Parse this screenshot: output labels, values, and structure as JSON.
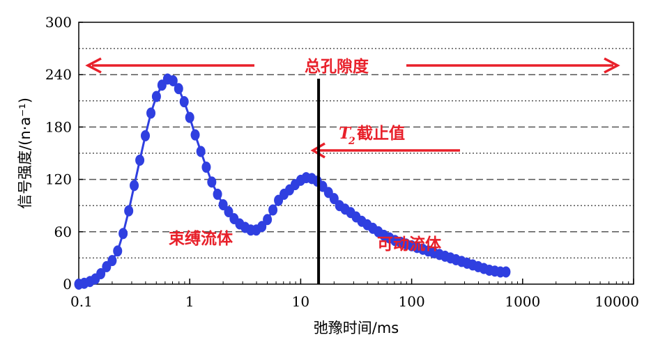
{
  "chart_data": {
    "type": "line",
    "xlabel": "弛豫时间/ms",
    "ylabel": "信号强度/(n·a⁻¹)",
    "x_scale": "log",
    "xlim": [
      0.1,
      10000
    ],
    "ylim": [
      0,
      300
    ],
    "x_ticks": [
      "0.1",
      "1",
      "10",
      "100",
      "1000",
      "10000"
    ],
    "y_ticks": [
      "0",
      "60",
      "120",
      "180",
      "240",
      "300"
    ],
    "grid": {
      "dashed_y": [
        60,
        120,
        180,
        240
      ],
      "dotted_y": [
        30,
        90,
        150,
        210,
        270
      ]
    },
    "series": [
      {
        "color": "#2f3fe0",
        "marker": "circle",
        "points": [
          [
            0.1,
            0
          ],
          [
            0.112,
            1
          ],
          [
            0.126,
            3
          ],
          [
            0.141,
            6
          ],
          [
            0.158,
            12
          ],
          [
            0.178,
            20
          ],
          [
            0.2,
            27
          ],
          [
            0.224,
            38
          ],
          [
            0.251,
            58
          ],
          [
            0.282,
            84
          ],
          [
            0.316,
            113
          ],
          [
            0.355,
            142
          ],
          [
            0.398,
            170
          ],
          [
            0.447,
            196
          ],
          [
            0.501,
            215
          ],
          [
            0.562,
            228
          ],
          [
            0.631,
            235
          ],
          [
            0.708,
            233
          ],
          [
            0.794,
            224
          ],
          [
            0.891,
            209
          ],
          [
            1.0,
            191
          ],
          [
            1.12,
            171
          ],
          [
            1.26,
            152
          ],
          [
            1.41,
            134
          ],
          [
            1.58,
            117
          ],
          [
            1.78,
            103
          ],
          [
            2.0,
            91
          ],
          [
            2.24,
            83
          ],
          [
            2.51,
            75
          ],
          [
            2.82,
            69
          ],
          [
            3.16,
            65
          ],
          [
            3.55,
            62
          ],
          [
            3.98,
            62
          ],
          [
            4.47,
            66
          ],
          [
            5.01,
            74
          ],
          [
            5.62,
            85
          ],
          [
            6.31,
            96
          ],
          [
            7.08,
            103
          ],
          [
            7.94,
            108
          ],
          [
            8.91,
            114
          ],
          [
            10.0,
            119
          ],
          [
            11.2,
            122
          ],
          [
            12.6,
            121
          ],
          [
            14.1,
            118
          ],
          [
            15.8,
            112
          ],
          [
            17.8,
            105
          ],
          [
            20.0,
            98
          ],
          [
            22.4,
            90
          ],
          [
            25.1,
            86
          ],
          [
            28.2,
            82
          ],
          [
            31.6,
            77
          ],
          [
            35.5,
            72
          ],
          [
            39.8,
            68
          ],
          [
            44.7,
            64
          ],
          [
            50.1,
            60
          ],
          [
            56.2,
            56
          ],
          [
            63.1,
            53
          ],
          [
            70.8,
            50
          ],
          [
            79.4,
            48
          ],
          [
            89.1,
            46
          ],
          [
            100,
            44
          ],
          [
            112,
            42
          ],
          [
            126,
            40
          ],
          [
            141,
            38
          ],
          [
            158,
            36
          ],
          [
            178,
            34
          ],
          [
            200,
            32
          ],
          [
            224,
            30
          ],
          [
            251,
            28
          ],
          [
            282,
            26
          ],
          [
            316,
            24
          ],
          [
            355,
            22
          ],
          [
            398,
            20
          ],
          [
            447,
            18
          ],
          [
            501,
            16
          ],
          [
            562,
            15
          ],
          [
            631,
            14
          ],
          [
            708,
            14
          ]
        ]
      }
    ],
    "t2_cutoff_x": 14.5,
    "annotations": {
      "total_porosity": "总孔隙度",
      "t2_cutoff": "截止值",
      "t2_symbol": "T",
      "t2_subscript": "2",
      "bound_fluid": "束缚流体",
      "movable_fluid": "可动流体"
    },
    "colors": {
      "curve": "#2f3fe0",
      "annotation": "#e8202a",
      "grid": "#555555",
      "cutoff_line": "#000000"
    }
  }
}
